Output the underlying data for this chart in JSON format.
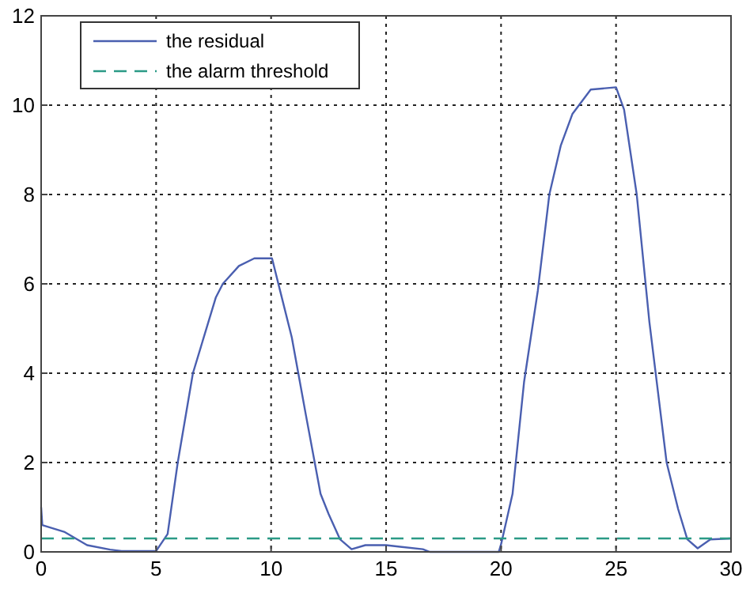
{
  "chart_data": {
    "type": "line",
    "xlim": [
      0,
      30
    ],
    "ylim": [
      0,
      12
    ],
    "xticks": [
      0,
      5,
      10,
      15,
      20,
      25,
      30
    ],
    "yticks": [
      0,
      2,
      4,
      6,
      8,
      10,
      12
    ],
    "grid": true,
    "legend": "top left",
    "line_style": "solid",
    "series": [
      {
        "name": "the residual",
        "color": "#4a5fb0",
        "x": [
          0,
          0.05,
          1,
          2,
          3,
          3.5,
          5,
          5.5,
          5.94,
          6.6,
          7.6,
          7.9,
          8.6,
          9.27,
          10.04,
          10.4,
          10.9,
          11.5,
          12.15,
          12.5,
          13,
          13.5,
          14.1,
          15,
          16.6,
          16.9,
          19.9,
          20,
          20.5,
          21,
          21.6,
          22.1,
          22.6,
          23.1,
          23.9,
          25,
          25.35,
          25.9,
          26.45,
          27.2,
          27.7,
          28.1,
          28.55,
          29.1,
          30
        ],
        "values": [
          1.0,
          0.6,
          0.45,
          0.15,
          0.05,
          0.02,
          0.02,
          0.4,
          2,
          4,
          5.7,
          6.0,
          6.4,
          6.57,
          6.57,
          5.83,
          4.8,
          3.1,
          1.3,
          0.85,
          0.28,
          0.06,
          0.15,
          0.15,
          0.06,
          0,
          0,
          0.17,
          1.3,
          3.8,
          5.85,
          8.0,
          9.1,
          9.8,
          10.35,
          10.4,
          9.9,
          8.0,
          5.15,
          2.0,
          0.96,
          0.28,
          0.08,
          0.28,
          0.3
        ]
      },
      {
        "name": "the alarm threshold",
        "color": "#2b9a86",
        "line_style": "dashed",
        "x": [
          0,
          30
        ],
        "values": [
          0.3,
          0.3
        ]
      }
    ]
  }
}
